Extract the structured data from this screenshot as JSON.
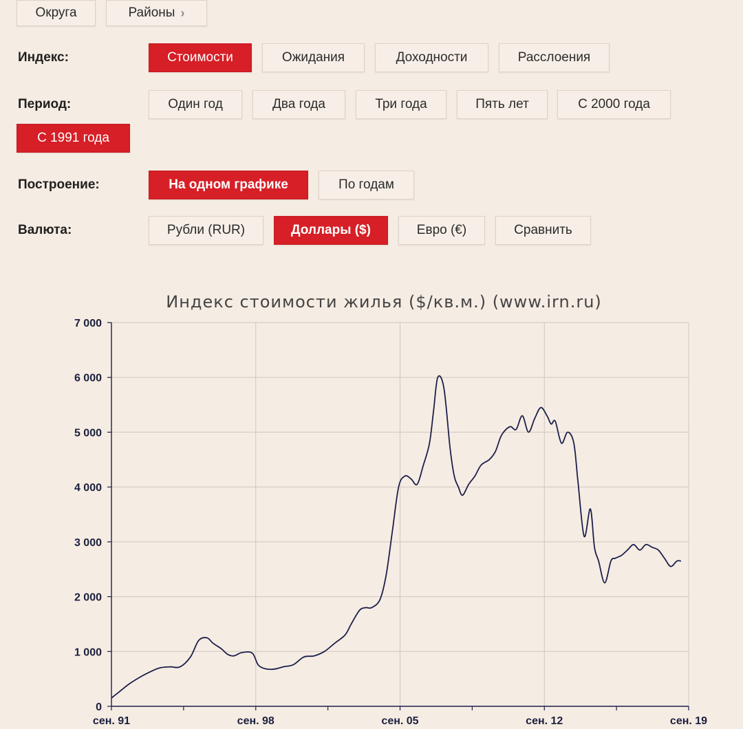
{
  "nav": {
    "okruga": "Округа",
    "rayony": "Районы",
    "chevron": "›"
  },
  "filters": {
    "index_label": "Индекс:",
    "index_options": [
      "Стоимости",
      "Ожидания",
      "Доходности",
      "Расслоения"
    ],
    "index_selected": "Стоимости",
    "period_label": "Период:",
    "period_options": [
      "Один год",
      "Два года",
      "Три года",
      "Пять лет",
      "С 2000 года",
      "С 1991 года"
    ],
    "period_selected": "С 1991 года",
    "build_label": "Построение:",
    "build_options": [
      "На одном графике",
      "По годам"
    ],
    "build_selected": "На одном графике",
    "currency_label": "Валюта:",
    "currency_options": [
      "Рубли (RUR)",
      "Доллары ($)",
      "Евро (€)",
      "Сравнить"
    ],
    "currency_selected": "Доллары ($)"
  },
  "colors": {
    "accent": "#d61f26",
    "line": "#1c1f4a",
    "grid": "#cfc8c0",
    "background": "#f5ece3"
  },
  "chart_data": {
    "type": "line",
    "title": "Индекс стоимости жилья ($/кв.м.) (www.irn.ru)",
    "xlabel": "",
    "ylabel": "",
    "ylim": [
      0,
      7000
    ],
    "xlim": [
      1991.67,
      2019.67
    ],
    "y_ticks": [
      0,
      1000,
      2000,
      3000,
      4000,
      5000,
      6000,
      7000
    ],
    "y_tick_labels": [
      "0",
      "1 000",
      "2 000",
      "3 000",
      "4 000",
      "5 000",
      "6 000",
      "7 000"
    ],
    "x_ticks": [
      1991.67,
      1998.67,
      2005.67,
      2012.67,
      2019.67
    ],
    "x_tick_labels": [
      "сен. 91",
      "сен. 98",
      "сен. 05",
      "сен. 12",
      "сен. 19"
    ],
    "grid": true,
    "legend": "none",
    "series": [
      {
        "x": [
          1991.67,
          1992.0,
          1992.5,
          1993.0,
          1993.5,
          1994.0,
          1994.5,
          1995.0,
          1995.5,
          1995.9,
          1996.3,
          1996.6,
          1997.0,
          1997.3,
          1997.6,
          1998.0,
          1998.5,
          1998.8,
          1999.2,
          1999.6,
          2000.0,
          2000.5,
          2001.0,
          2001.5,
          2002.0,
          2002.5,
          2003.0,
          2003.3,
          2003.7,
          2004.0,
          2004.3,
          2004.7,
          2005.0,
          2005.3,
          2005.6,
          2005.9,
          2006.2,
          2006.5,
          2006.8,
          2007.1,
          2007.3,
          2007.5,
          2007.8,
          2008.1,
          2008.3,
          2008.5,
          2008.7,
          2009.0,
          2009.3,
          2009.6,
          2010.0,
          2010.3,
          2010.6,
          2011.0,
          2011.3,
          2011.6,
          2011.9,
          2012.2,
          2012.5,
          2012.8,
          2013.0,
          2013.2,
          2013.5,
          2013.8,
          2014.1,
          2014.3,
          2014.6,
          2014.9,
          2015.1,
          2015.3,
          2015.6,
          2015.9,
          2016.1,
          2016.4,
          2016.7,
          2017.0,
          2017.3,
          2017.6,
          2017.9,
          2018.2,
          2018.5,
          2018.8,
          2019.1,
          2019.3
        ],
        "y": [
          150,
          250,
          400,
          520,
          620,
          700,
          720,
          720,
          900,
          1200,
          1250,
          1150,
          1050,
          950,
          920,
          980,
          970,
          750,
          680,
          680,
          720,
          760,
          900,
          920,
          1000,
          1150,
          1300,
          1500,
          1750,
          1800,
          1800,
          1950,
          2400,
          3200,
          4000,
          4200,
          4150,
          4050,
          4400,
          4800,
          5400,
          6000,
          5800,
          4700,
          4200,
          4000,
          3850,
          4050,
          4200,
          4400,
          4500,
          4650,
          4950,
          5100,
          5050,
          5300,
          5000,
          5250,
          5450,
          5300,
          5150,
          5200,
          4800,
          5000,
          4800,
          4100,
          3100,
          3600,
          2900,
          2650,
          2250,
          2650,
          2700,
          2750,
          2850,
          2950,
          2850,
          2950,
          2900,
          2850,
          2700,
          2550,
          2650,
          2650
        ]
      }
    ]
  }
}
